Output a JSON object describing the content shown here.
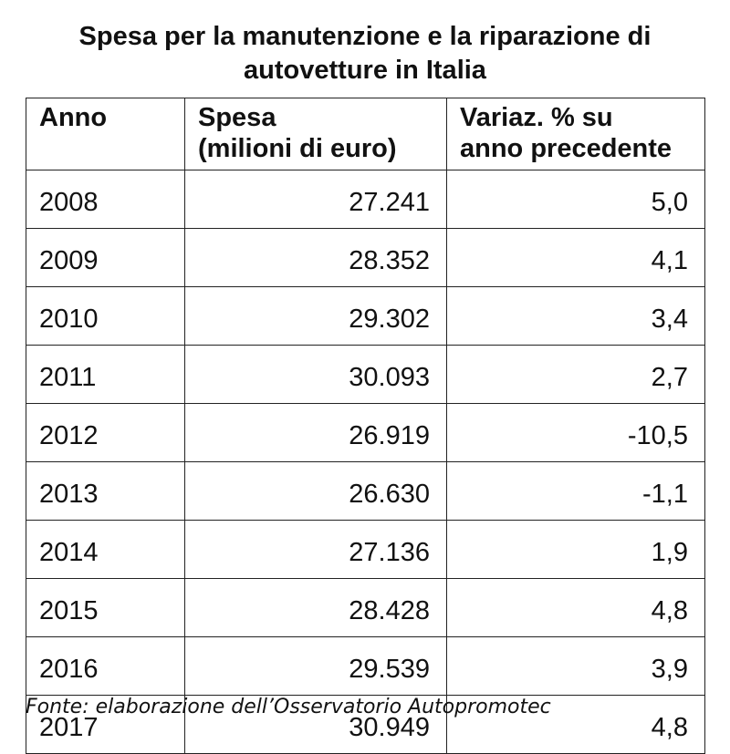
{
  "title": {
    "line1": "Spesa per la manutenzione e la riparazione di",
    "line2": "autovetture in Italia"
  },
  "table": {
    "headers": [
      {
        "line1": "Anno",
        "line2": ""
      },
      {
        "line1": "Spesa",
        "line2": "(milioni di euro)"
      },
      {
        "line1": "Variaz. % su",
        "line2": "anno precedente"
      }
    ],
    "rows": [
      {
        "year": "2008",
        "spesa": "27.241",
        "variazione": "5,0"
      },
      {
        "year": "2009",
        "spesa": "28.352",
        "variazione": "4,1"
      },
      {
        "year": "2010",
        "spesa": "29.302",
        "variazione": "3,4"
      },
      {
        "year": "2011",
        "spesa": "30.093",
        "variazione": "2,7"
      },
      {
        "year": "2012",
        "spesa": "26.919",
        "variazione": "-10,5"
      },
      {
        "year": "2013",
        "spesa": "26.630",
        "variazione": "-1,1"
      },
      {
        "year": "2014",
        "spesa": "27.136",
        "variazione": "1,9"
      },
      {
        "year": "2015",
        "spesa": "28.428",
        "variazione": "4,8"
      },
      {
        "year": "2016",
        "spesa": "29.539",
        "variazione": "3,9"
      },
      {
        "year": "2017",
        "spesa": "30.949",
        "variazione": "4,8"
      }
    ]
  },
  "source": "Fonte: elaborazione dell’Osservatorio Autopromotec"
}
